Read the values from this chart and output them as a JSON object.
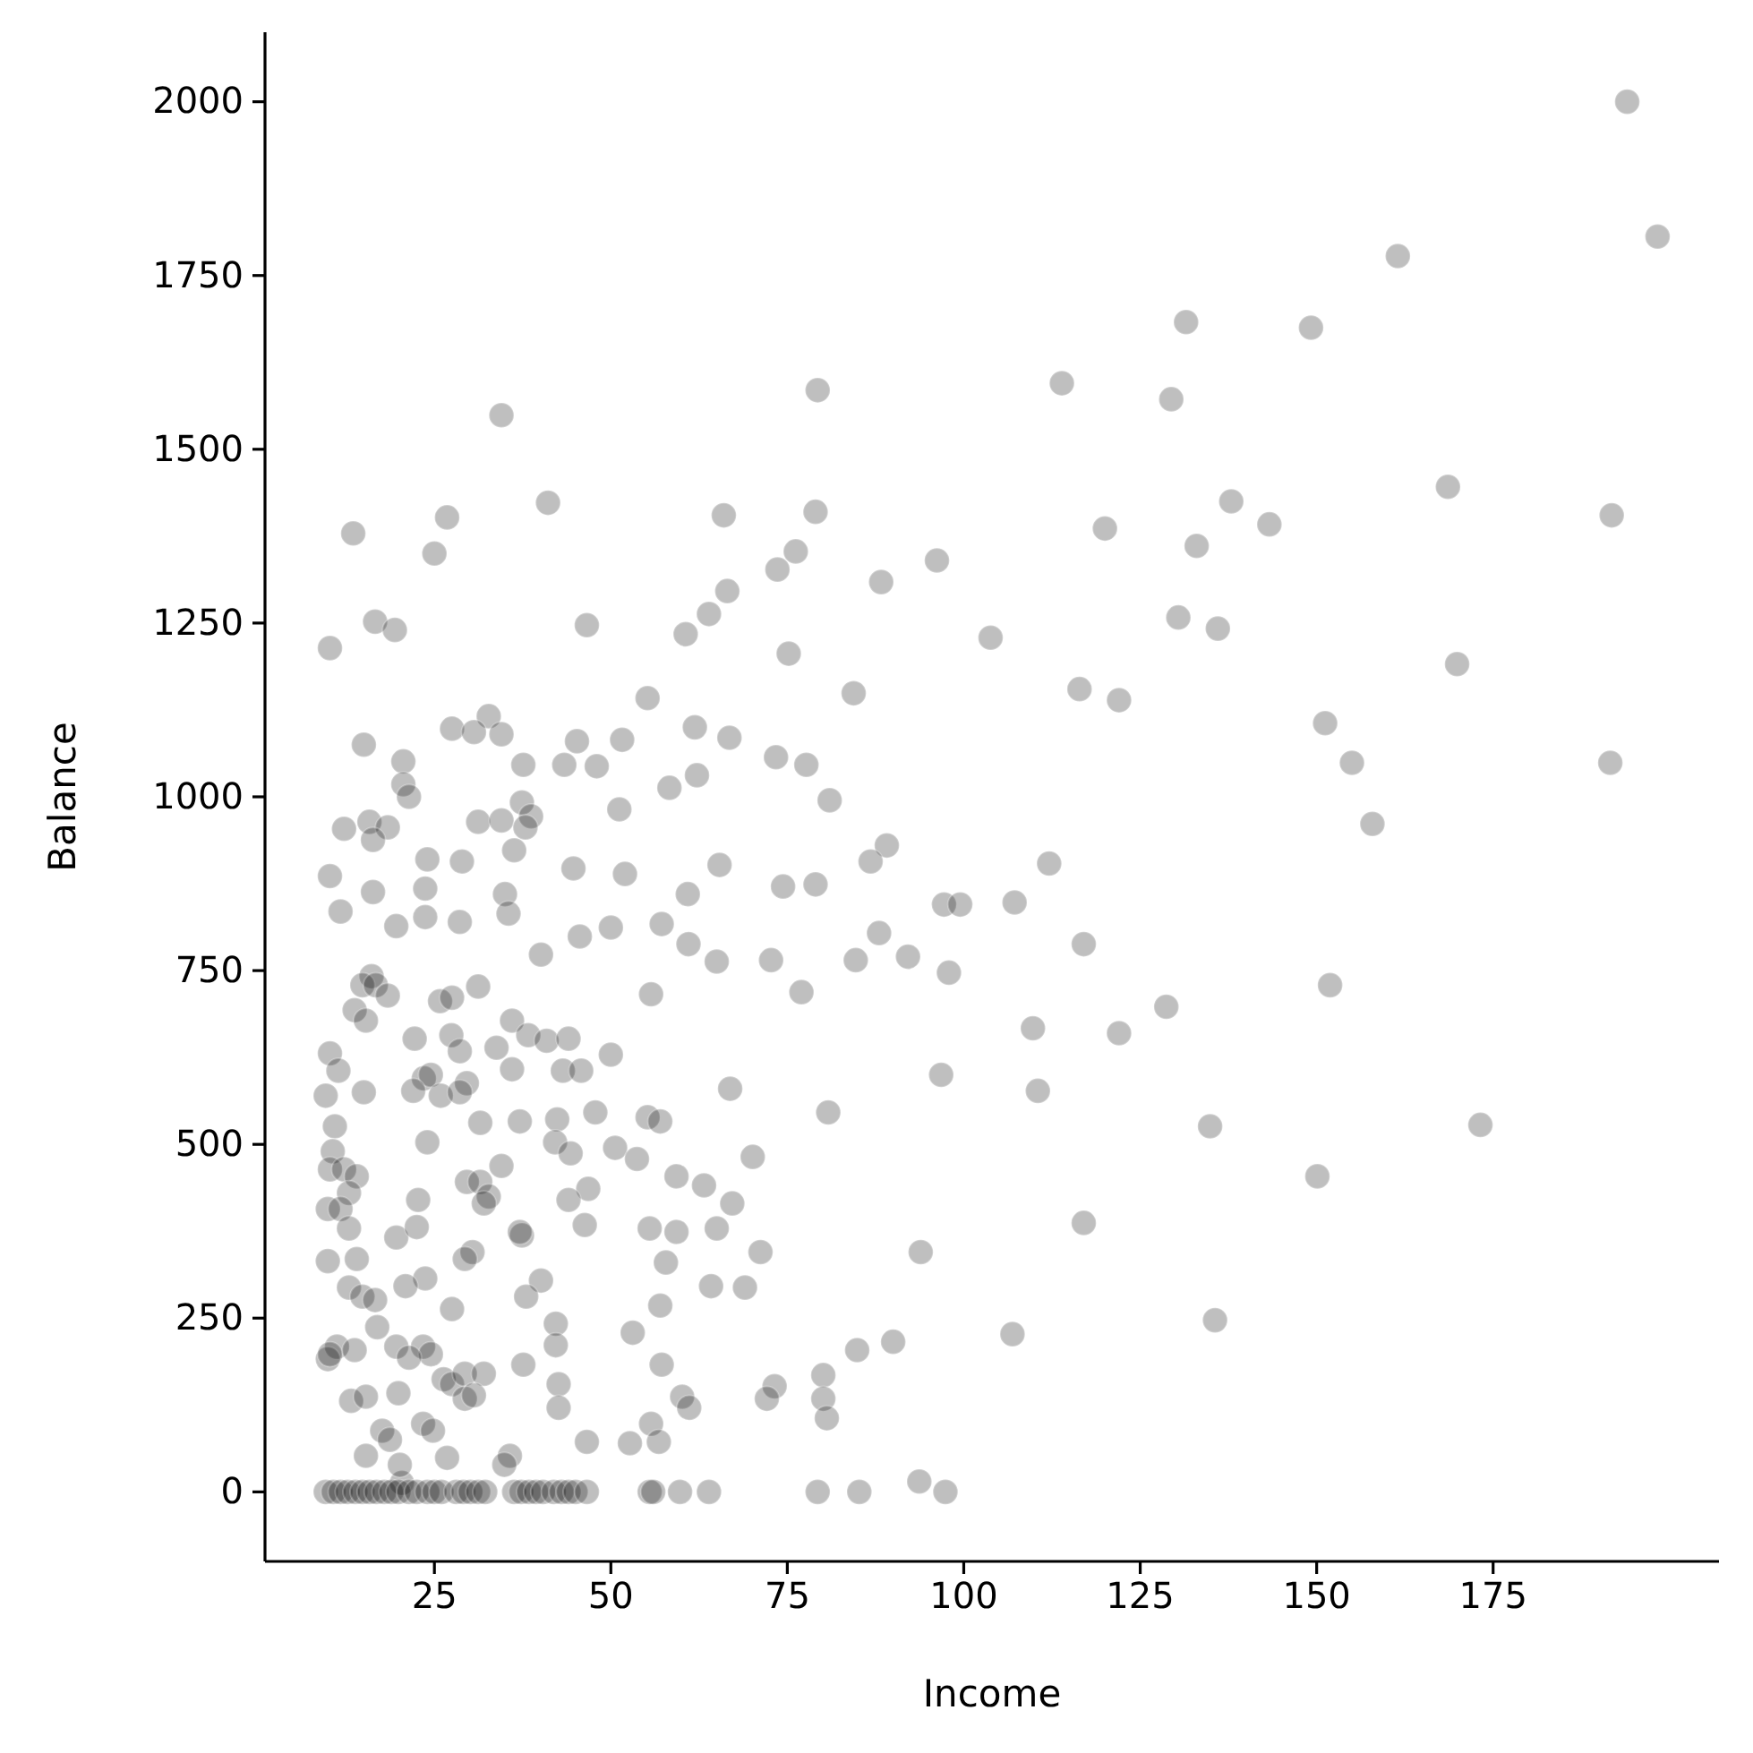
{
  "chart_data": {
    "type": "scatter",
    "xlabel": "Income",
    "ylabel": "Balance",
    "xlim": [
      1,
      207
    ],
    "ylim": [
      -100,
      2100
    ],
    "xticks": [
      25,
      50,
      75,
      100,
      125,
      150,
      175
    ],
    "yticks": [
      0,
      250,
      500,
      750,
      1000,
      1250,
      1500,
      1750,
      2000
    ],
    "grid": false,
    "marker": "circle",
    "series": [
      {
        "color": "#000000",
        "x": [
          194,
          198.3,
          161.5,
          131.5,
          149.2,
          113.9,
          129.4,
          79.3,
          34.5,
          168.6,
          137.9,
          41.1,
          143.3,
          120,
          191.8,
          66,
          79,
          26.8,
          13.5,
          76.2,
          73.6,
          133,
          25,
          96.2,
          88.3,
          66.5,
          130.4,
          136,
          63.9,
          16.6,
          19.4,
          46.6,
          60.6,
          103.8,
          10.2,
          75.2,
          169.9,
          84.4,
          116.4,
          55.2,
          122,
          32.7,
          61.9,
          27.5,
          30.6,
          34.5,
          151.2,
          45.2,
          51.6,
          66.8,
          15,
          48,
          43.4,
          37.6,
          77.7,
          155,
          191.6,
          20.6,
          73.4,
          62.2,
          58.3,
          81,
          20.6,
          21.4,
          37.4,
          38.7,
          51.2,
          31.2,
          34.5,
          37.9,
          15.8,
          12.2,
          18.4,
          16.3,
          36.3,
          89.1,
          157.9,
          28.9,
          44.7,
          52,
          65.4,
          86.8,
          112.1,
          24,
          10.2,
          79,
          74.4,
          23.7,
          16.3,
          35,
          60.9,
          97.2,
          99.5,
          107.2,
          11.7,
          35.5,
          23.7,
          19.6,
          28.6,
          50,
          57.2,
          61,
          117,
          45.6,
          88,
          40.1,
          84.7,
          65,
          72.7,
          92.1,
          151.9,
          97.9,
          16.1,
          31.2,
          14.8,
          16.7,
          128.7,
          77,
          55.7,
          18.4,
          25.8,
          27.5,
          13.7,
          15.3,
          36,
          38.3,
          22.2,
          40.9,
          27.4,
          44,
          33.8,
          28.6,
          50,
          122,
          109.8,
          10.2,
          23.5,
          24.5,
          36,
          43.2,
          45.8,
          96.8,
          11.4,
          15,
          22,
          25.9,
          29.6,
          66.9,
          110.5,
          28.6,
          9.6,
          10.9,
          31.5,
          37.1,
          42.4,
          47.8,
          55.2,
          57,
          80.8,
          134.9,
          173.2,
          10.6,
          42.1,
          24,
          50.6,
          53.7,
          44.3,
          10.2,
          12.2,
          70.1,
          150.1,
          59.3,
          34.5,
          14,
          29.6,
          31.5,
          63.2,
          46.8,
          12.9,
          22.7,
          32.7,
          44,
          67.2,
          9.9,
          11.7,
          32,
          46.3,
          55.5,
          59.3,
          65,
          37.4,
          37.1,
          12.9,
          19.6,
          22.5,
          117,
          30.4,
          29.3,
          71.2,
          93.9,
          14,
          9.9,
          57.8,
          23.7,
          40.1,
          64.2,
          69,
          12.9,
          20.9,
          14.8,
          38,
          16.6,
          27.5,
          57,
          106.9,
          135.6,
          53.1,
          42.2,
          90,
          84.9,
          16.9,
          11.2,
          9.9,
          10.2,
          13.7,
          19.6,
          23.4,
          24.5,
          21.4,
          42.2,
          37.6,
          57.2,
          26.3,
          27.5,
          29.3,
          32,
          42.6,
          80.1,
          73.2,
          13.2,
          15.3,
          19.9,
          29.3,
          30.6,
          60.1,
          80.1,
          72.1,
          42.6,
          61.1,
          80.6,
          17.6,
          23.4,
          55.7,
          24.8,
          15.3,
          35.7,
          34.9,
          46.6,
          52.7,
          56.8,
          18.7,
          26.8,
          93.7,
          20.4,
          20.1,
          9.6,
          10.7,
          11.7,
          12.7,
          13.8,
          14.8,
          15.8,
          16.8,
          17.9,
          18.9,
          19.9,
          21.4,
          22.5,
          24,
          25,
          26,
          28.1,
          29.1,
          30.1,
          31.2,
          32.2,
          36.3,
          37.3,
          38.4,
          39.4,
          40.4,
          41.9,
          43,
          44,
          45,
          46.6,
          55.5,
          56,
          59.8,
          63.9,
          79.3,
          85.2,
          97.4
        ],
        "values": [
          2000,
          1806,
          1778,
          1683,
          1675,
          1595,
          1572,
          1585,
          1549,
          1446,
          1425,
          1423,
          1392,
          1386,
          1405,
          1405,
          1410,
          1402,
          1379,
          1353,
          1327,
          1361,
          1350,
          1340,
          1309,
          1296,
          1258,
          1242,
          1263,
          1252,
          1240,
          1247,
          1234,
          1229,
          1214,
          1206,
          1191,
          1149,
          1155,
          1142,
          1139,
          1116,
          1100,
          1098,
          1093,
          1090,
          1106,
          1080,
          1082,
          1085,
          1075,
          1044,
          1046,
          1046,
          1046,
          1049,
          1049,
          1051,
          1057,
          1031,
          1013,
          995,
          1018,
          1000,
          992,
          972,
          982,
          964,
          966,
          956,
          964,
          954,
          956,
          938,
          923,
          930,
          961,
          907,
          897,
          889,
          902,
          907,
          904,
          910,
          886,
          874,
          871,
          868,
          863,
          860,
          860,
          845,
          845,
          848,
          835,
          832,
          827,
          814,
          820,
          812,
          817,
          788,
          788,
          799,
          804,
          773,
          765,
          763,
          765,
          770,
          729,
          747,
          742,
          727,
          729,
          729,
          698,
          719,
          716,
          714,
          706,
          711,
          693,
          678,
          678,
          657,
          652,
          649,
          657,
          652,
          639,
          634,
          629,
          660,
          667,
          631,
          595,
          600,
          608,
          606,
          606,
          600,
          606,
          575,
          577,
          570,
          588,
          580,
          577,
          575,
          570,
          526,
          531,
          533,
          536,
          546,
          539,
          533,
          546,
          526,
          528,
          490,
          503,
          503,
          495,
          479,
          487,
          464,
          464,
          482,
          454,
          454,
          469,
          454,
          446,
          446,
          441,
          436,
          430,
          420,
          425,
          420,
          415,
          407,
          407,
          415,
          384,
          379,
          374,
          379,
          369,
          374,
          379,
          366,
          381,
          387,
          345,
          335,
          345,
          345,
          335,
          332,
          330,
          307,
          304,
          296,
          294,
          294,
          296,
          281,
          281,
          276,
          263,
          268,
          227,
          247,
          229,
          242,
          216,
          204,
          237,
          209,
          191,
          198,
          204,
          209,
          209,
          198,
          193,
          211,
          183,
          183,
          162,
          155,
          170,
          170,
          155,
          168,
          152,
          131,
          137,
          142,
          134,
          139,
          137,
          134,
          134,
          121,
          121,
          106,
          88,
          98,
          98,
          88,
          52,
          52,
          39,
          72,
          70,
          72,
          75,
          49,
          15,
          13,
          39,
          0,
          0,
          0,
          0,
          0,
          0,
          0,
          0,
          0,
          0,
          0,
          0,
          0,
          0,
          0,
          0,
          0,
          0,
          0,
          0,
          0,
          0,
          0,
          0,
          0,
          0,
          0,
          0,
          0,
          0,
          0,
          0,
          0,
          0,
          0,
          0,
          0,
          0
        ]
      }
    ]
  }
}
